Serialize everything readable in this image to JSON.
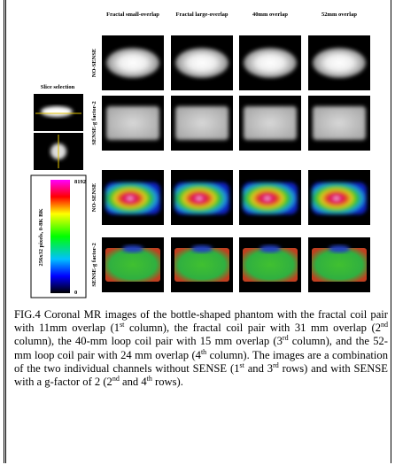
{
  "figure": {
    "column_headers": [
      "Fractal small-overlap",
      "Fractal large-overlap",
      "40mm overlap",
      "52mm overlap"
    ],
    "row_labels": [
      "NO-SENSE",
      "SENSE-g factor-2",
      "NO-SENSE",
      "SENSE-g factor-2"
    ],
    "slice_selection": "Slice selection",
    "colorbar": {
      "max": "8192",
      "min": "0",
      "label": "256x32 pixels, 0-8K BK"
    }
  },
  "caption": {
    "parts": [
      "FIG.4 Coronal MR images of the bottle-shaped phantom with the fractal coil pair with 11mm overlap (1",
      "st",
      " column), the fractal coil pair with 31 mm overlap (2",
      "nd",
      " column), the 40-mm loop coil pair with 15 mm overlap (3",
      "rd",
      " column), and the 52-mm loop coil pair with 24 mm overlap (4",
      "th",
      " column). The images are a combination of the two individual channels without SENSE (1",
      "st",
      " and 3",
      "rd",
      " rows) and with SENSE with a g-factor of 2 (2",
      "nd",
      " and 4",
      "th",
      " rows)."
    ]
  }
}
